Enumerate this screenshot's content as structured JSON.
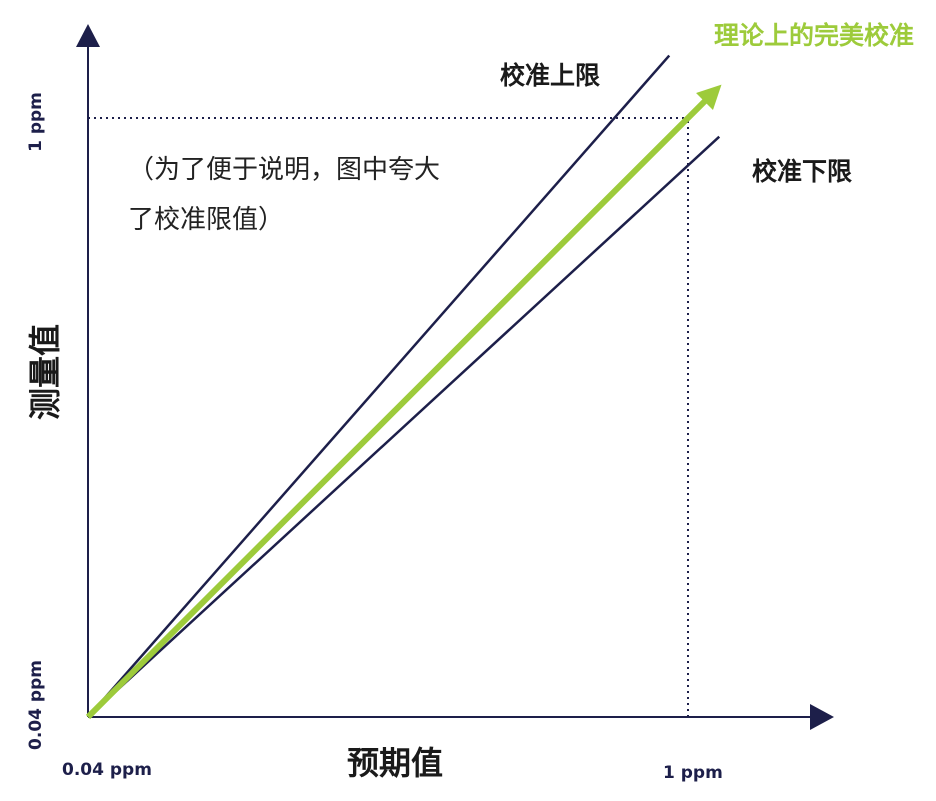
{
  "colors": {
    "axis": "#1d1f4a",
    "ideal": "#9dcb3b",
    "limit": "#1d1f4a",
    "text": "#1a1a1a"
  },
  "chart_data": {
    "type": "line",
    "xlabel": "预期值",
    "ylabel": "测量值",
    "x_ticks": [
      "0.04  ppm",
      "1 ppm"
    ],
    "y_ticks": [
      "0.04  ppm",
      "1 ppm"
    ],
    "xlim": [
      0.04,
      1
    ],
    "ylim": [
      0.04,
      1
    ],
    "grid": false,
    "series": [
      {
        "name": "理论上的完美校准",
        "x": [
          0.04,
          1.04
        ],
        "y": [
          0.04,
          1.04
        ]
      },
      {
        "name": "校准上限",
        "x": [
          0.04,
          0.97
        ],
        "y": [
          0.04,
          1.1
        ]
      },
      {
        "name": "校准下限",
        "x": [
          0.04,
          1.05
        ],
        "y": [
          0.04,
          0.97
        ]
      }
    ],
    "reference_lines": [
      {
        "style": "dotted",
        "x": [
          0.04,
          1
        ],
        "y": [
          1,
          1
        ]
      },
      {
        "style": "dotted",
        "x": [
          1,
          1
        ],
        "y": [
          0.04,
          1
        ]
      }
    ]
  },
  "annotations": {
    "note_line1": "（为了便于说明，图中夸大",
    "note_line2": "了校准限值）"
  }
}
